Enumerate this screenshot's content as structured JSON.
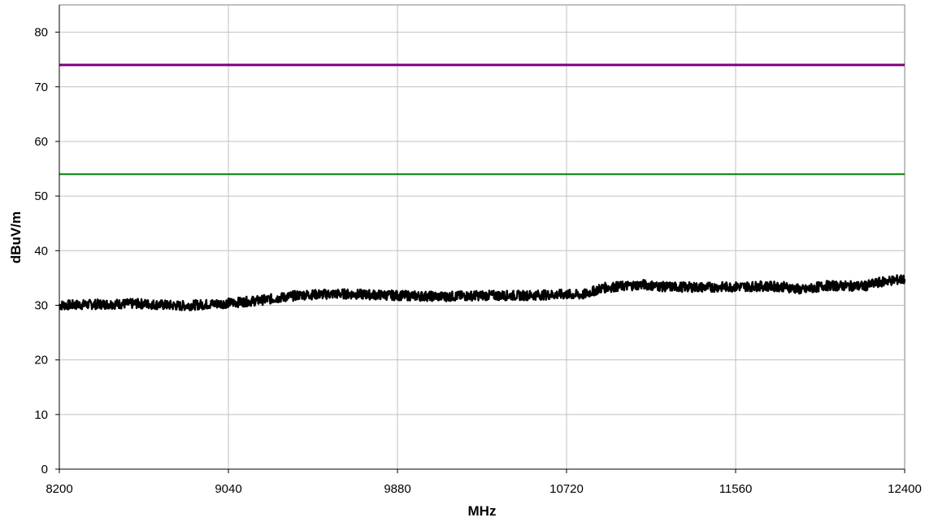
{
  "chart_data": {
    "type": "line",
    "xlabel": "MHz",
    "ylabel": "dBuV/m",
    "xlim": [
      8200,
      12400
    ],
    "ylim": [
      0,
      85
    ],
    "x_ticks": [
      8200,
      9040,
      9880,
      10720,
      11560,
      12400
    ],
    "y_ticks": [
      0,
      10,
      20,
      30,
      40,
      50,
      60,
      70,
      80
    ],
    "grid": true,
    "legend": "none",
    "colors": {
      "limit_upper": "#800080",
      "limit_lower": "#008000",
      "measurement": "#000000",
      "grid": "#c0c0c0"
    },
    "series": [
      {
        "x": [
          8200,
          12400
        ],
        "values": [
          74,
          74
        ]
      },
      {
        "x": [
          8200,
          12400
        ],
        "values": [
          54,
          54
        ]
      },
      {
        "x": [
          8200,
          8400,
          8600,
          8800,
          9040,
          9200,
          9400,
          9600,
          9880,
          10100,
          10300,
          10500,
          10720,
          10800,
          10900,
          11000,
          11100,
          11200,
          11400,
          11560,
          11700,
          11800,
          11900,
          12000,
          12200,
          12300,
          12400
        ],
        "values": [
          30,
          30.2,
          30.3,
          29.9,
          30.4,
          30.9,
          31.9,
          32.1,
          31.8,
          31.6,
          31.8,
          31.8,
          32.0,
          31.9,
          33.2,
          33.5,
          33.8,
          33.4,
          33.3,
          33.4,
          33.5,
          33.4,
          32.8,
          33.6,
          33.5,
          34.4,
          34.8
        ]
      }
    ]
  }
}
